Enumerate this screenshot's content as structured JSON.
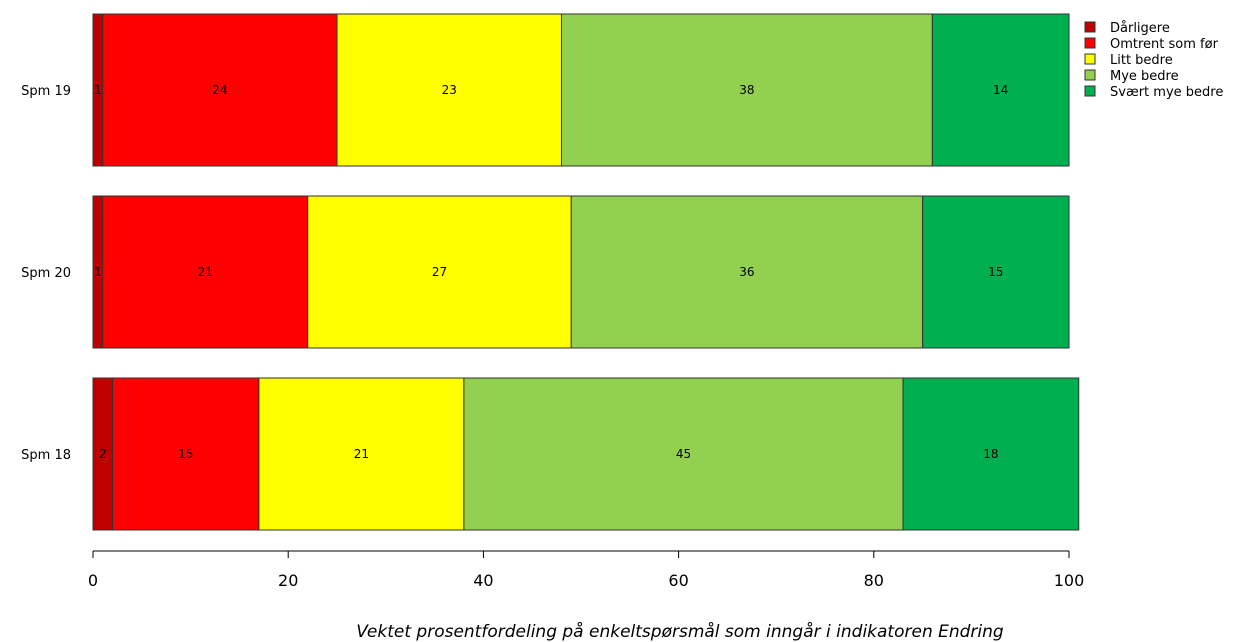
{
  "chart_data": {
    "type": "bar",
    "orientation": "horizontal",
    "stacked": true,
    "categories": [
      "Spm 19",
      "Spm 20",
      "Spm 18"
    ],
    "series": [
      {
        "name": "Dårligere",
        "color": "#c00000",
        "values": [
          1,
          1,
          2
        ]
      },
      {
        "name": "Omtrent som før",
        "color": "#ff0000",
        "values": [
          24,
          21,
          15
        ]
      },
      {
        "name": "Litt bedre",
        "color": "#ffff00",
        "values": [
          23,
          27,
          21
        ]
      },
      {
        "name": "Mye bedre",
        "color": "#92d050",
        "values": [
          38,
          36,
          45
        ]
      },
      {
        "name": "Svært mye bedre",
        "color": "#00b050",
        "values": [
          14,
          15,
          18
        ]
      }
    ],
    "xlim": [
      0,
      100
    ],
    "xticks": [
      0,
      20,
      40,
      60,
      80,
      100
    ],
    "xlabel": "Vektet prosentfordeling på enkeltspørsmål som inngår i indikatoren Endring",
    "legend_position": "top-right",
    "grid": false
  }
}
